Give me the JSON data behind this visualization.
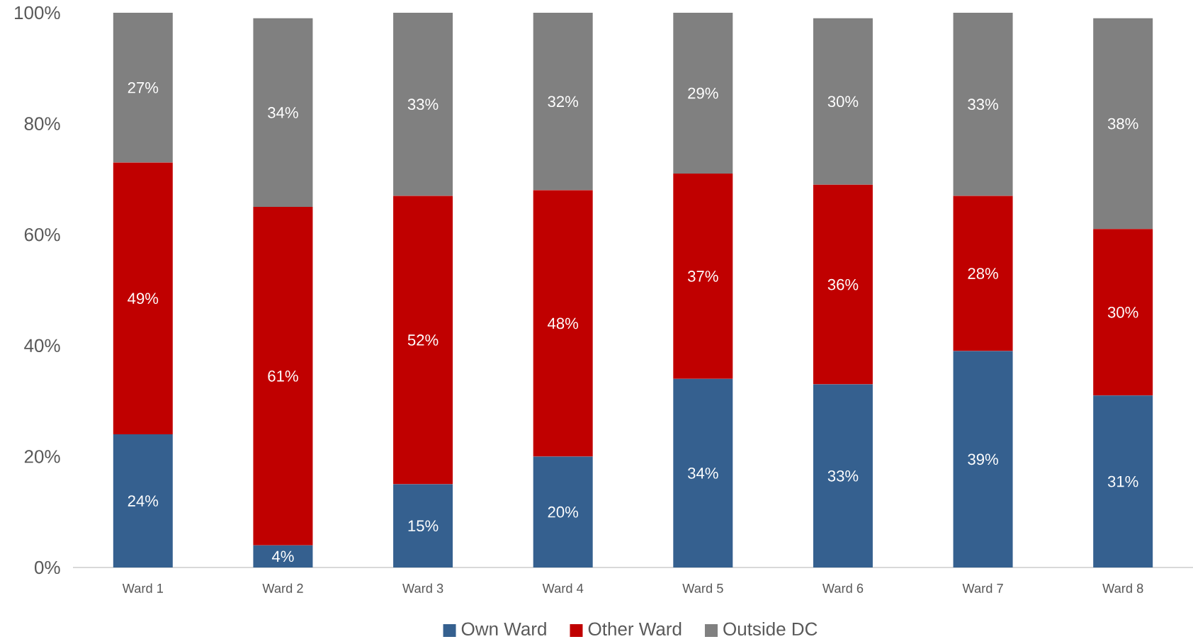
{
  "chart_data": {
    "type": "bar",
    "stacked": true,
    "categories": [
      "Ward 1",
      "Ward 2",
      "Ward 3",
      "Ward 4",
      "Ward 5",
      "Ward 6",
      "Ward 7",
      "Ward 8"
    ],
    "series": [
      {
        "name": "Own Ward",
        "color": "#35608f",
        "values": [
          24,
          4,
          15,
          20,
          34,
          33,
          39,
          31
        ],
        "value_labels": [
          "24%",
          "4%",
          "15%",
          "20%",
          "34%",
          "33%",
          "39%",
          "31%"
        ]
      },
      {
        "name": "Other Ward",
        "color": "#c00000",
        "values": [
          49,
          61,
          52,
          48,
          37,
          36,
          28,
          30
        ],
        "value_labels": [
          "49%",
          "61%",
          "52%",
          "48%",
          "37%",
          "36%",
          "28%",
          "30%"
        ]
      },
      {
        "name": "Outside DC",
        "color": "#808080",
        "values": [
          27,
          34,
          33,
          32,
          29,
          30,
          33,
          38
        ],
        "value_labels": [
          "27%",
          "34%",
          "33%",
          "32%",
          "29%",
          "30%",
          "33%",
          "38%"
        ]
      }
    ],
    "ylim": [
      0,
      100
    ],
    "yticks": [
      {
        "value": 0,
        "label": "0%"
      },
      {
        "value": 20,
        "label": "20%"
      },
      {
        "value": 40,
        "label": "40%"
      },
      {
        "value": 60,
        "label": "60%"
      },
      {
        "value": 80,
        "label": "80%"
      },
      {
        "value": 100,
        "label": "100%"
      }
    ],
    "legend": "bottom",
    "grid": false
  }
}
